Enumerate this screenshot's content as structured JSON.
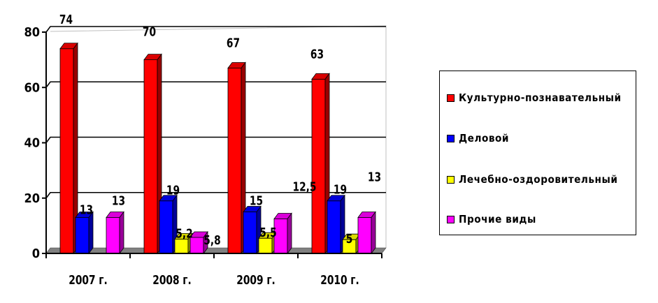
{
  "chart_data": {
    "type": "bar",
    "categories": [
      "2007 г.",
      "2008 г.",
      "2009 г.",
      "2010 г."
    ],
    "series": [
      {
        "name": "Культурно-познавательный",
        "color": "#ff0000",
        "values": [
          74,
          70,
          67,
          63
        ],
        "labels": [
          "74",
          "70",
          "67",
          "63"
        ]
      },
      {
        "name": "Деловой",
        "color": "#0000ff",
        "values": [
          13,
          19,
          15,
          19
        ],
        "labels": [
          "13",
          "19",
          "15",
          "19"
        ]
      },
      {
        "name": "Лечебно-оздоровительный",
        "color": "#ffff00",
        "values": [
          0,
          5.2,
          5.5,
          5
        ],
        "labels": [
          "",
          "5,2",
          "5,5",
          "5"
        ]
      },
      {
        "name": "Прочие виды",
        "color": "#ff00ff",
        "values": [
          13,
          5.8,
          12.5,
          13
        ],
        "labels": [
          "13",
          "5,8",
          "12,5",
          "13"
        ]
      }
    ],
    "yticks": [
      "0",
      "20",
      "40",
      "60",
      "80"
    ],
    "ylim": [
      0,
      80
    ],
    "grid": true,
    "legend_position": "right"
  }
}
